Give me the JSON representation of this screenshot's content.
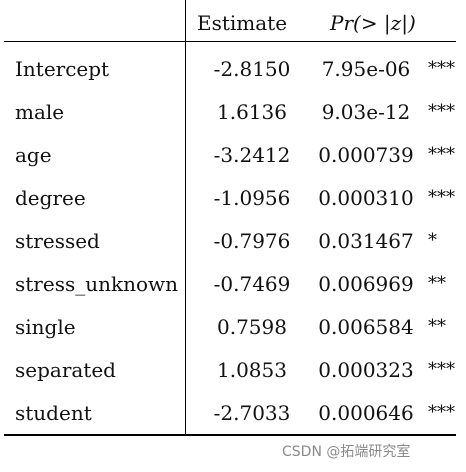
{
  "header": {
    "col_estimate": "Estimate",
    "col_p": "Pr(> |z|)"
  },
  "rows": [
    {
      "name": "Intercept",
      "estimate": "-2.8150",
      "p": "7.95e-06",
      "sig": "***"
    },
    {
      "name": "male",
      "estimate": "1.6136",
      "p": "9.03e-12",
      "sig": "***"
    },
    {
      "name": "age",
      "estimate": "-3.2412",
      "p": "0.000739",
      "sig": "***"
    },
    {
      "name": "degree",
      "estimate": "-1.0956",
      "p": "0.000310",
      "sig": "***"
    },
    {
      "name": "stressed",
      "estimate": "-0.7976",
      "p": "0.031467",
      "sig": "*"
    },
    {
      "name": "stress_unknown",
      "estimate": "-0.7469",
      "p": "0.006969",
      "sig": "**"
    },
    {
      "name": "single",
      "estimate": "0.7598",
      "p": "0.006584",
      "sig": "**"
    },
    {
      "name": "separated",
      "estimate": "1.0853",
      "p": "0.000323",
      "sig": "***"
    },
    {
      "name": "student",
      "estimate": "-2.7033",
      "p": "0.000646",
      "sig": "***"
    }
  ],
  "watermark": "CSDN @拓端研究室"
}
